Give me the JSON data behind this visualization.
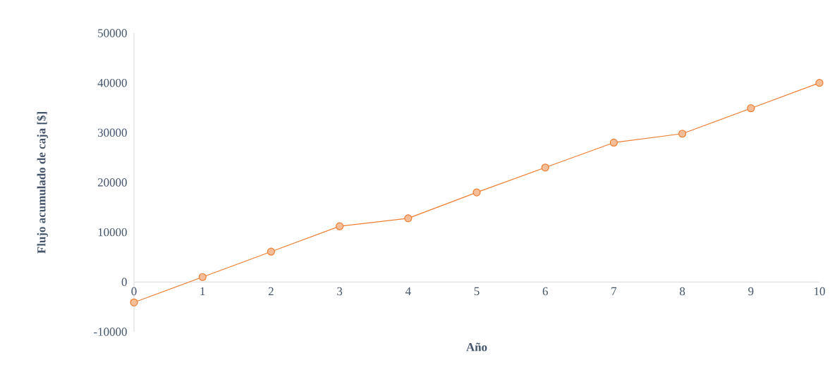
{
  "chart_data": {
    "type": "line",
    "xlabel": "Año",
    "ylabel": "Flujo acumulado de caja [$]",
    "x": [
      0,
      1,
      2,
      3,
      4,
      5,
      6,
      7,
      8,
      9,
      10
    ],
    "series": [
      {
        "color": "#ed7d31",
        "values": [
          -4100,
          1000,
          6100,
          11200,
          12800,
          18000,
          23000,
          28000,
          29800,
          34900,
          40000
        ]
      }
    ],
    "xlim": [
      0,
      10
    ],
    "xticks": [
      0,
      1,
      2,
      3,
      4,
      5,
      6,
      7,
      8,
      9,
      10
    ],
    "ylim": [
      -10000,
      50000
    ],
    "yticks": [
      -10000,
      0,
      10000,
      20000,
      30000,
      40000,
      50000
    ],
    "marker": "circle",
    "line_style": "solid"
  }
}
